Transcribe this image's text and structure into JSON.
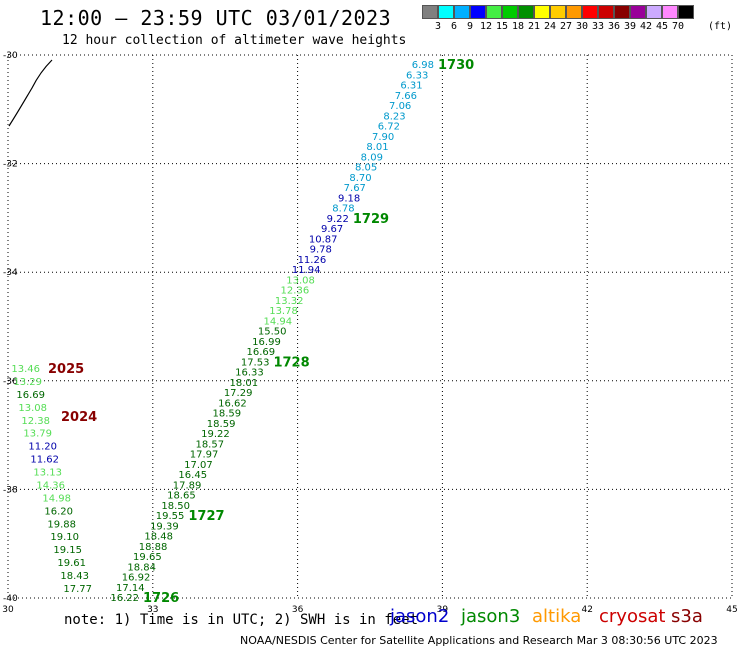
{
  "header": {
    "title": "12:00 — 23:59 UTC 03/01/2023",
    "subtitle": "12 hour collection of altimeter wave heights"
  },
  "legend": {
    "unit": "(ft)",
    "bins": [
      {
        "label": "3",
        "color": "#808080"
      },
      {
        "label": "6",
        "color": "#00ffff"
      },
      {
        "label": "9",
        "color": "#00b0ff"
      },
      {
        "label": "12",
        "color": "#0000ff"
      },
      {
        "label": "15",
        "color": "#44ee44"
      },
      {
        "label": "18",
        "color": "#00cc00"
      },
      {
        "label": "21",
        "color": "#009000"
      },
      {
        "label": "24",
        "color": "#ffff00"
      },
      {
        "label": "27",
        "color": "#ffcc00"
      },
      {
        "label": "30",
        "color": "#ff9900"
      },
      {
        "label": "33",
        "color": "#ff0000"
      },
      {
        "label": "36",
        "color": "#cc0000"
      },
      {
        "label": "39",
        "color": "#880000"
      },
      {
        "label": "42",
        "color": "#990099"
      },
      {
        "label": "45",
        "color": "#ccaaff"
      },
      {
        "label": "70",
        "color": "#ff88ff"
      },
      {
        "label": "",
        "color": "#000000"
      }
    ]
  },
  "map": {
    "lon_ticks": [
      "30",
      "33",
      "36",
      "39",
      "42",
      "45"
    ],
    "lat_ticks": [
      "-30",
      "-32",
      "-34",
      "-36",
      "-38",
      "-40"
    ]
  },
  "footer": {
    "note": "note: 1) Time is in UTC; 2) SWH is in feet",
    "satellites": [
      {
        "name": "jason2",
        "color": "#0000cc"
      },
      {
        "name": "jason3",
        "color": "#008800"
      },
      {
        "name": "altika",
        "color": "#ff9900"
      },
      {
        "name": "cryosat",
        "color": "#cc0000"
      },
      {
        "name": "s3a",
        "color": "#880000"
      }
    ],
    "credit": "NOAA/NESDIS Center for Satellite Applications and Research   Mar  3 08:30:56 UTC 2023"
  },
  "track_east": {
    "colors": {
      "light_blue": "#0099cc",
      "dark_blue": "#0000aa",
      "light_green": "#55dd55",
      "dark_green": "#006600"
    },
    "points": [
      {
        "v": "6.98",
        "c": "light_blue"
      },
      {
        "v": "6.33",
        "c": "light_blue"
      },
      {
        "v": "6.31",
        "c": "light_blue"
      },
      {
        "v": "7.66",
        "c": "light_blue"
      },
      {
        "v": "7.06",
        "c": "light_blue"
      },
      {
        "v": "8.23",
        "c": "light_blue"
      },
      {
        "v": "6.72",
        "c": "light_blue"
      },
      {
        "v": "7.90",
        "c": "light_blue"
      },
      {
        "v": "8.01",
        "c": "light_blue"
      },
      {
        "v": "8.09",
        "c": "light_blue"
      },
      {
        "v": "8.05",
        "c": "light_blue"
      },
      {
        "v": "8.70",
        "c": "light_blue"
      },
      {
        "v": "7.67",
        "c": "light_blue"
      },
      {
        "v": "9.18",
        "c": "dark_blue"
      },
      {
        "v": "8.78",
        "c": "light_blue"
      },
      {
        "v": "9.22",
        "c": "dark_blue"
      },
      {
        "v": "9.67",
        "c": "dark_blue"
      },
      {
        "v": "10.87",
        "c": "dark_blue"
      },
      {
        "v": "9.78",
        "c": "dark_blue"
      },
      {
        "v": "11.26",
        "c": "dark_blue"
      },
      {
        "v": "11.94",
        "c": "dark_blue"
      },
      {
        "v": "13.08",
        "c": "light_green"
      },
      {
        "v": "12.36",
        "c": "light_green"
      },
      {
        "v": "13.32",
        "c": "light_green"
      },
      {
        "v": "13.78",
        "c": "light_green"
      },
      {
        "v": "14.94",
        "c": "light_green"
      },
      {
        "v": "15.50",
        "c": "dark_green"
      },
      {
        "v": "16.99",
        "c": "dark_green"
      },
      {
        "v": "16.69",
        "c": "dark_green"
      },
      {
        "v": "17.53",
        "c": "dark_green"
      },
      {
        "v": "16.33",
        "c": "dark_green"
      },
      {
        "v": "18.01",
        "c": "dark_green"
      },
      {
        "v": "17.29",
        "c": "dark_green"
      },
      {
        "v": "16.62",
        "c": "dark_green"
      },
      {
        "v": "18.59",
        "c": "dark_green"
      },
      {
        "v": "18.59",
        "c": "dark_green"
      },
      {
        "v": "19.22",
        "c": "dark_green"
      },
      {
        "v": "18.57",
        "c": "dark_green"
      },
      {
        "v": "17.97",
        "c": "dark_green"
      },
      {
        "v": "17.07",
        "c": "dark_green"
      },
      {
        "v": "16.45",
        "c": "dark_green"
      },
      {
        "v": "17.89",
        "c": "dark_green"
      },
      {
        "v": "18.65",
        "c": "dark_green"
      },
      {
        "v": "18.50",
        "c": "dark_green"
      },
      {
        "v": "19.55",
        "c": "dark_green"
      },
      {
        "v": "19.39",
        "c": "dark_green"
      },
      {
        "v": "18.48",
        "c": "dark_green"
      },
      {
        "v": "18.88",
        "c": "dark_green"
      },
      {
        "v": "19.65",
        "c": "dark_green"
      },
      {
        "v": "18.84",
        "c": "dark_green"
      },
      {
        "v": "16.92",
        "c": "dark_green"
      },
      {
        "v": "17.14",
        "c": "dark_green"
      },
      {
        "v": "16.22",
        "c": "dark_green"
      }
    ],
    "times": [
      {
        "t": "1730",
        "after": 0
      },
      {
        "t": "1729",
        "after": 15
      },
      {
        "t": "1728",
        "after": 29
      },
      {
        "t": "1727",
        "after": 44
      },
      {
        "t": "1726",
        "after": 52
      }
    ]
  },
  "track_west": {
    "points": [
      {
        "v": "13.46",
        "c": "light_green"
      },
      {
        "v": "13.29",
        "c": "light_green"
      },
      {
        "v": "16.69",
        "c": "dark_green"
      },
      {
        "v": "13.08",
        "c": "light_green"
      },
      {
        "v": "12.38",
        "c": "light_green"
      },
      {
        "v": "13.79",
        "c": "light_green"
      },
      {
        "v": "11.20",
        "c": "dark_blue"
      },
      {
        "v": "11.62",
        "c": "dark_blue"
      },
      {
        "v": "13.13",
        "c": "light_green"
      },
      {
        "v": "14.36",
        "c": "light_green"
      },
      {
        "v": "14.98",
        "c": "light_green"
      },
      {
        "v": "16.20",
        "c": "dark_green"
      },
      {
        "v": "19.88",
        "c": "dark_green"
      },
      {
        "v": "19.10",
        "c": "dark_green"
      },
      {
        "v": "19.15",
        "c": "dark_green"
      },
      {
        "v": "19.61",
        "c": "dark_green"
      },
      {
        "v": "18.43",
        "c": "dark_green"
      },
      {
        "v": "17.77",
        "c": "dark_green"
      }
    ],
    "times": [
      {
        "t": "2025",
        "color": "#880000"
      },
      {
        "t": "2024",
        "color": "#880000"
      }
    ]
  }
}
